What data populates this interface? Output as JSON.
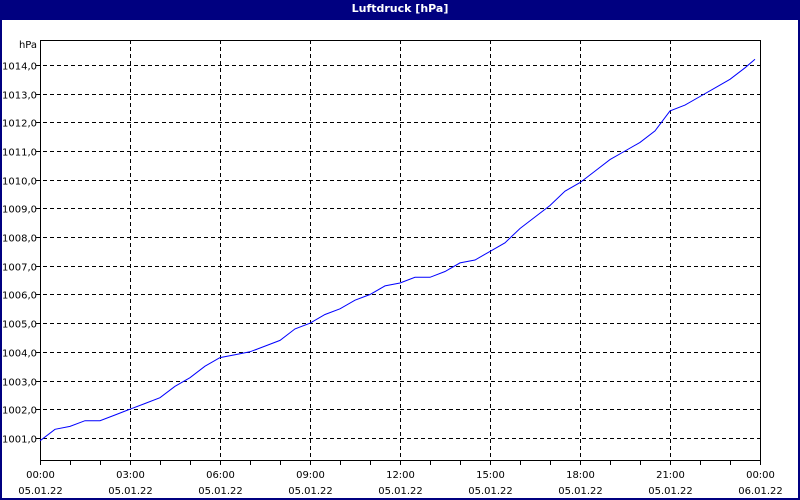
{
  "title": "Luftdruck [hPa]",
  "chart_data": {
    "type": "line",
    "title": "Luftdruck [hPa]",
    "ylabel": "hPa",
    "xlabel": "",
    "ylim": [
      1000.23,
      1014.87
    ],
    "xlim_hours": [
      0,
      24
    ],
    "grid": true,
    "line_color": "#0000ff",
    "y_ticks": [
      "1001,0",
      "1002,0",
      "1003,0",
      "1004,0",
      "1005,0",
      "1006,0",
      "1007,0",
      "1008,0",
      "1009,0",
      "1010,0",
      "1011,0",
      "1012,0",
      "1013,0",
      "1014,0"
    ],
    "y_tick_values": [
      1001,
      1002,
      1003,
      1004,
      1005,
      1006,
      1007,
      1008,
      1009,
      1010,
      1011,
      1012,
      1013,
      1014
    ],
    "x_ticks": [
      {
        "time": "00:00",
        "date": "05.01.22"
      },
      {
        "time": "03:00",
        "date": "05.01.22"
      },
      {
        "time": "06:00",
        "date": "05.01.22"
      },
      {
        "time": "09:00",
        "date": "05.01.22"
      },
      {
        "time": "12:00",
        "date": "05.01.22"
      },
      {
        "time": "15:00",
        "date": "05.01.22"
      },
      {
        "time": "18:00",
        "date": "05.01.22"
      },
      {
        "time": "21:00",
        "date": "05.01.22"
      },
      {
        "time": "00:00",
        "date": "06.01.22"
      }
    ],
    "series": [
      {
        "x": [
          "00:00",
          "00:30",
          "01:00",
          "01:30",
          "02:00",
          "02:30",
          "03:00",
          "03:30",
          "04:00",
          "04:30",
          "05:00",
          "05:30",
          "06:00",
          "06:30",
          "07:00",
          "07:30",
          "08:00",
          "08:30",
          "09:00",
          "09:30",
          "10:00",
          "10:30",
          "11:00",
          "11:30",
          "12:00",
          "12:30",
          "13:00",
          "13:30",
          "14:00",
          "14:30",
          "15:00",
          "15:30",
          "16:00",
          "16:30",
          "17:00",
          "17:30",
          "18:00",
          "18:30",
          "19:00",
          "19:30",
          "20:00",
          "20:30",
          "21:00",
          "21:30",
          "22:00",
          "22:30",
          "23:00",
          "23:30",
          "23:50"
        ],
        "values": [
          1000.9,
          1001.3,
          1001.4,
          1001.6,
          1001.6,
          1001.8,
          1002.0,
          1002.2,
          1002.4,
          1002.8,
          1003.1,
          1003.5,
          1003.8,
          1003.9,
          1004.0,
          1004.2,
          1004.4,
          1004.8,
          1005.0,
          1005.3,
          1005.5,
          1005.8,
          1006.0,
          1006.3,
          1006.4,
          1006.6,
          1006.6,
          1006.8,
          1007.1,
          1007.2,
          1007.5,
          1007.8,
          1008.3,
          1008.7,
          1009.1,
          1009.6,
          1009.9,
          1010.3,
          1010.7,
          1011.0,
          1011.3,
          1011.7,
          1012.4,
          1012.6,
          1012.9,
          1013.2,
          1013.5,
          1013.9,
          1014.2
        ]
      }
    ]
  }
}
